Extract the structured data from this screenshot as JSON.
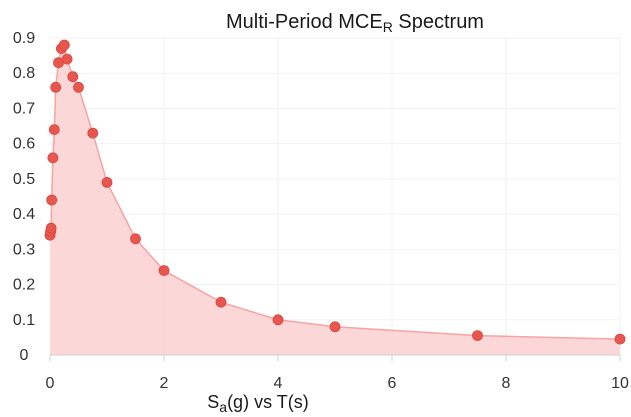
{
  "chart_data": {
    "type": "area",
    "title": {
      "main": "Multi-Period MCE",
      "sub": "R",
      "tail": " Spectrum"
    },
    "xlabel": {
      "a": "S",
      "b": "a",
      "c": "(g) vs T(s)"
    },
    "ylabel": "",
    "xlim": [
      0,
      10
    ],
    "ylim": [
      0,
      0.9
    ],
    "xticks": [
      "0",
      "2",
      "4",
      "6",
      "8",
      "10"
    ],
    "yticks": [
      "0",
      "0.1",
      "0.2",
      "0.3",
      "0.4",
      "0.5",
      "0.6",
      "0.7",
      "0.8",
      "0.9"
    ],
    "grid": true,
    "series": [
      {
        "x": [
          0.0,
          0.01,
          0.02,
          0.03,
          0.05,
          0.075,
          0.1,
          0.15,
          0.2,
          0.25,
          0.3,
          0.4,
          0.5,
          0.75,
          1.0,
          1.5,
          2.0,
          3.0,
          4.0,
          5.0,
          7.5,
          10.0
        ],
        "y": [
          0.34,
          0.35,
          0.36,
          0.44,
          0.56,
          0.64,
          0.76,
          0.83,
          0.87,
          0.88,
          0.84,
          0.79,
          0.76,
          0.63,
          0.49,
          0.33,
          0.24,
          0.15,
          0.1,
          0.08,
          0.055,
          0.045
        ]
      }
    ],
    "colors": {
      "point": "#e8574f",
      "fill": "#fcd0d0",
      "line": "#f6a3a3",
      "grid": "#f2f2f2"
    }
  }
}
